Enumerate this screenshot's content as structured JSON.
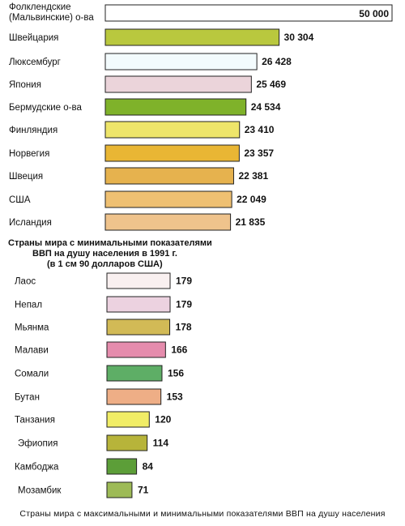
{
  "chart_data": [
    {
      "type": "bar",
      "orientation": "horizontal",
      "categories": [
        "Фолклендские\n(Мальвинские) о-ва",
        "Швейцария",
        "Люксембург",
        "Япония",
        "Бермудские о-ва",
        "Финляндия",
        "Норвегия",
        "Швеция",
        "США",
        "Исландия"
      ],
      "values": [
        50000,
        30304,
        26428,
        25469,
        24534,
        23410,
        23357,
        22381,
        22049,
        21835
      ],
      "value_labels": [
        "50 000",
        "30 304",
        "26 428",
        "25 469",
        "24 534",
        "23 410",
        "23 357",
        "22 381",
        "22 049",
        "21 835"
      ],
      "colors": [
        "#ffffff",
        "#b9c83e",
        "#f3fbfd",
        "#ebd4da",
        "#7fb22a",
        "#eee56a",
        "#e9b634",
        "#e6b24e",
        "#efc072",
        "#efc38c"
      ],
      "grid": false
    },
    {
      "type": "bar",
      "orientation": "horizontal",
      "title": "Страны мира с минимальными показателями\nВВП на душу населения в 1991 г.\n(в 1 см 90 долларов США)",
      "categories": [
        "Лаос",
        "Непал",
        "Мьянма",
        "Малави",
        "Сомали",
        "Бутан",
        "Танзания",
        "Эфиопия",
        "Камбоджа",
        "Мозамбик"
      ],
      "values": [
        179,
        179,
        178,
        166,
        156,
        153,
        120,
        114,
        84,
        71
      ],
      "value_labels": [
        "179",
        "179",
        "178",
        "166",
        "156",
        "153",
        "120",
        "114",
        "84",
        "71"
      ],
      "colors": [
        "#f9f0f0",
        "#ecd2e0",
        "#d2ba56",
        "#e58cad",
        "#5eae66",
        "#eeae86",
        "#f1ed66",
        "#b7b43a",
        "#5c9e38",
        "#9dba56"
      ],
      "grid": false
    }
  ],
  "caption": "Страны мира с максимальными и минимальными показателями ВВП на душу населения"
}
